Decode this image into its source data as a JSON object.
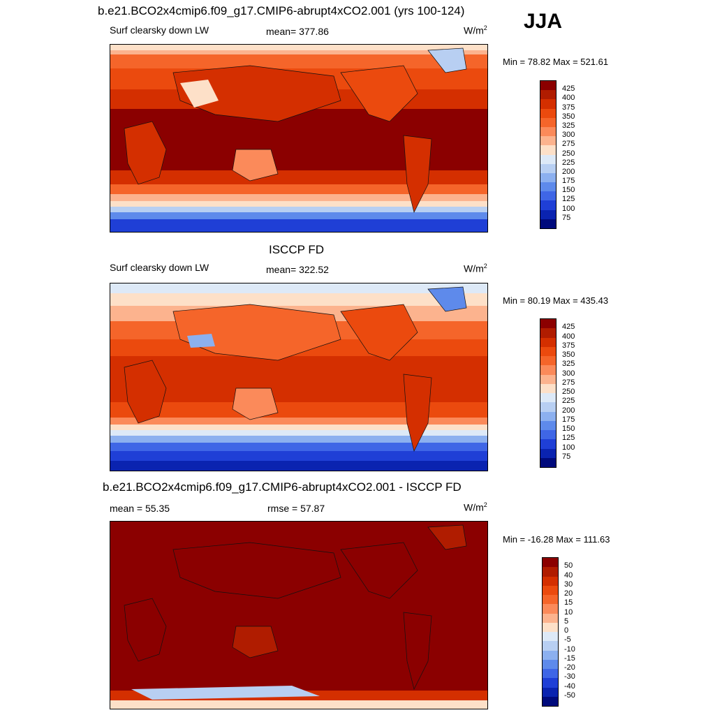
{
  "season": "JJA",
  "units_base": "W/m",
  "units_exp": "2",
  "panels": [
    {
      "title": "b.e21.BCO2x4cmip6.f09_g17.CMIP6-abrupt4xCO2.001 (yrs 100-124)",
      "variable": "Surf clearsky down LW",
      "mean": "mean= 377.86",
      "minmax": "Min =  78.82 Max = 521.61",
      "ticks": [
        "425",
        "400",
        "375",
        "350",
        "325",
        "300",
        "275",
        "250",
        "225",
        "200",
        "175",
        "150",
        "125",
        "100",
        "75"
      ],
      "map_kind": "model"
    },
    {
      "title": "ISCCP FD",
      "variable": "Surf clearsky down LW",
      "mean": "mean= 322.52",
      "minmax": "Min =  80.19 Max = 435.43",
      "ticks": [
        "425",
        "400",
        "375",
        "350",
        "325",
        "300",
        "275",
        "250",
        "225",
        "200",
        "175",
        "150",
        "125",
        "100",
        "75"
      ],
      "map_kind": "obs"
    },
    {
      "title": "b.e21.BCO2x4cmip6.f09_g17.CMIP6-abrupt4xCO2.001 - ISCCP FD",
      "mean": "mean =  55.35",
      "rmse": "rmse =  57.87",
      "minmax": "Min = -16.28 Max = 111.63",
      "ticks": [
        "50",
        "40",
        "30",
        "20",
        "15",
        "10",
        "5",
        "0",
        "-5",
        "-10",
        "-15",
        "-20",
        "-30",
        "-40",
        "-50"
      ],
      "map_kind": "diff"
    }
  ],
  "colorbar_colors": [
    "#8b0000",
    "#b01c00",
    "#d42f00",
    "#eb4a0e",
    "#f5652a",
    "#fb8a5a",
    "#fcb38e",
    "#fde0c8",
    "#dde9f7",
    "#b8cff2",
    "#8cb0ef",
    "#5e8aeb",
    "#3f66e6",
    "#1f3fd6",
    "#0a23b0",
    "#000a7c"
  ]
}
